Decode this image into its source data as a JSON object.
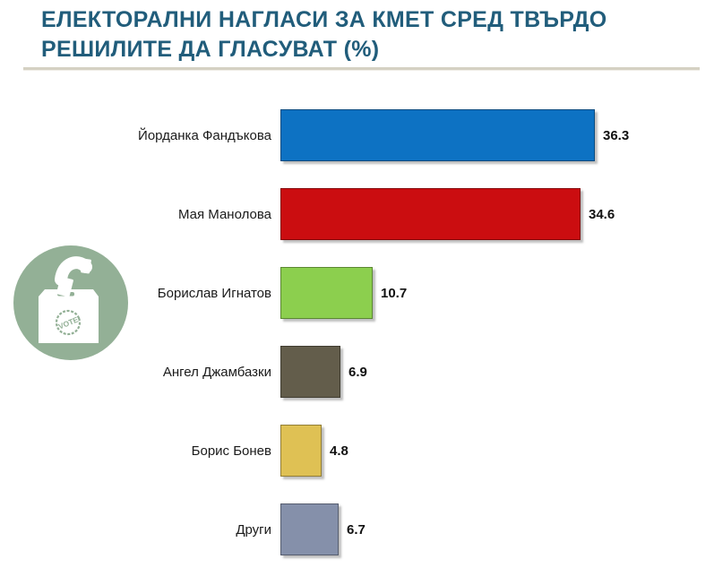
{
  "title": {
    "lines": [
      "ЕЛЕКТОРАЛНИ НАГЛАСИ ЗА КМЕТ СРЕД ТВЪРДО",
      "РЕШИЛИТЕ ДА ГЛАСУВАТ (%)"
    ]
  },
  "icon": {
    "name": "ballot-box-vote-icon",
    "stamp_text": "VOTE",
    "circle_color": "#93b096"
  },
  "chart_data": {
    "type": "bar",
    "orientation": "horizontal",
    "title": "ЕЛЕКТОРАЛНИ НАГЛАСИ ЗА КМЕТ СРЕД ТВЪРДО РЕШИЛИТЕ ДА ГЛАСУВАТ (%)",
    "categories": [
      "Йорданка Фандъкова",
      "Мая Манолова",
      "Борислав Игнатов",
      "Ангел Джамбазки",
      "Борис Бонев",
      "Други"
    ],
    "values": [
      36.3,
      34.6,
      10.7,
      6.9,
      4.8,
      6.7
    ],
    "value_labels": [
      "36.3",
      "34.6",
      "10.7",
      "6.9",
      "4.8",
      "6.7"
    ],
    "bar_colors": [
      "#0d72c3",
      "#cb0d10",
      "#8ccf4e",
      "#635d4b",
      "#dfc154",
      "#8590aa"
    ],
    "xlim": [
      0,
      40
    ],
    "grid": false,
    "legend": false,
    "xlabel": "",
    "ylabel": ""
  },
  "colors": {
    "title_text": "#215d7b",
    "divider": "#d5d1c3",
    "label_text": "#1a1a1a",
    "value_text": "#111111",
    "background": "#ffffff"
  }
}
